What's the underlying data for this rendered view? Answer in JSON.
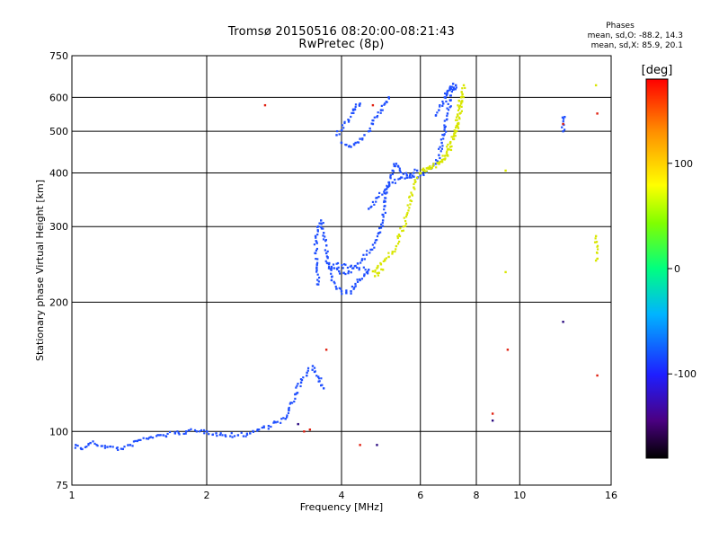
{
  "chart_data": {
    "type": "scatter",
    "title": "Tromsø 20150516 08:20:00-08:21:43",
    "subtitle": "RwPretec (8p)",
    "xlabel": "Frequency [MHz]",
    "ylabel": "Stationary phase Virtual Height [km]",
    "x_scale": "log",
    "y_scale": "log",
    "xlim": [
      1,
      16
    ],
    "ylim": [
      75,
      750
    ],
    "x_ticks": [
      1,
      2,
      4,
      6,
      8,
      10,
      16
    ],
    "y_ticks": [
      75,
      100,
      200,
      300,
      400,
      500,
      600,
      750
    ],
    "grid": true,
    "stats": {
      "heading": "Phases",
      "o_line": "mean, sd,O: -88.2, 14.3",
      "x_line": "mean, sd,X:  85.9, 20.1"
    },
    "colorbar": {
      "label": "[deg]",
      "range": [
        -180,
        180
      ],
      "ticks": [
        100,
        0,
        -100
      ],
      "tick_labels": [
        "100",
        "0",
        "-100"
      ]
    },
    "series": [
      {
        "mode": "O",
        "color": "#1f4fff",
        "trace": [
          [
            1.02,
            93
          ],
          [
            1.05,
            91
          ],
          [
            1.1,
            94
          ],
          [
            1.2,
            92
          ],
          [
            1.3,
            91
          ],
          [
            1.35,
            93
          ],
          [
            1.4,
            95
          ],
          [
            1.5,
            97
          ],
          [
            1.6,
            98
          ],
          [
            1.7,
            99
          ],
          [
            1.8,
            100
          ],
          [
            1.9,
            100
          ],
          [
            2.0,
            100
          ],
          [
            2.1,
            99
          ],
          [
            2.2,
            98
          ],
          [
            2.35,
            98
          ],
          [
            2.5,
            99
          ],
          [
            2.6,
            101
          ],
          [
            2.75,
            103
          ],
          [
            2.85,
            105
          ],
          [
            3.0,
            107
          ],
          [
            3.05,
            112
          ],
          [
            3.15,
            122
          ],
          [
            3.25,
            130
          ],
          [
            3.35,
            137
          ],
          [
            3.45,
            142
          ],
          [
            3.55,
            134
          ],
          [
            3.6,
            128
          ],
          [
            3.65,
            126
          ],
          [
            3.55,
            220
          ],
          [
            3.52,
            240
          ],
          [
            3.5,
            260
          ],
          [
            3.5,
            285
          ],
          [
            3.55,
            300
          ],
          [
            3.6,
            310
          ],
          [
            3.65,
            290
          ],
          [
            3.7,
            260
          ],
          [
            3.75,
            240
          ],
          [
            3.8,
            225
          ],
          [
            3.9,
            215
          ],
          [
            4.0,
            212
          ],
          [
            4.1,
            210
          ],
          [
            4.2,
            212
          ],
          [
            4.3,
            218
          ],
          [
            4.4,
            225
          ],
          [
            4.5,
            232
          ],
          [
            4.6,
            238
          ],
          [
            3.75,
            245
          ],
          [
            3.85,
            240
          ],
          [
            3.95,
            236
          ],
          [
            4.05,
            234
          ],
          [
            4.15,
            236
          ],
          [
            4.25,
            240
          ],
          [
            4.35,
            246
          ],
          [
            4.45,
            252
          ],
          [
            4.55,
            258
          ],
          [
            4.65,
            265
          ],
          [
            4.75,
            275
          ],
          [
            4.85,
            290
          ],
          [
            4.95,
            310
          ],
          [
            5.0,
            335
          ],
          [
            5.05,
            360
          ],
          [
            5.1,
            380
          ],
          [
            5.15,
            395
          ],
          [
            5.2,
            405
          ],
          [
            5.25,
            415
          ],
          [
            5.3,
            420
          ],
          [
            5.35,
            415
          ],
          [
            5.4,
            405
          ],
          [
            5.5,
            398
          ],
          [
            5.6,
            395
          ],
          [
            5.7,
            397
          ],
          [
            5.8,
            400
          ],
          [
            5.9,
            405
          ],
          [
            4.6,
            330
          ],
          [
            4.8,
            350
          ],
          [
            5.0,
            365
          ],
          [
            5.2,
            380
          ],
          [
            5.4,
            388
          ],
          [
            5.6,
            390
          ],
          [
            5.8,
            392
          ],
          [
            6.0,
            395
          ],
          [
            6.2,
            402
          ],
          [
            6.35,
            410
          ],
          [
            6.5,
            420
          ],
          [
            6.6,
            440
          ],
          [
            6.7,
            470
          ],
          [
            6.8,
            510
          ],
          [
            6.9,
            550
          ],
          [
            7.0,
            590
          ],
          [
            7.1,
            625
          ],
          [
            7.2,
            640
          ],
          [
            4.6,
            500
          ],
          [
            4.7,
            520
          ],
          [
            4.8,
            540
          ],
          [
            4.9,
            560
          ],
          [
            5.0,
            580
          ],
          [
            5.1,
            600
          ],
          [
            4.5,
            490
          ],
          [
            4.4,
            480
          ],
          [
            4.3,
            470
          ],
          [
            4.2,
            460
          ],
          [
            4.1,
            465
          ],
          [
            4.0,
            470
          ],
          [
            6.8,
            600
          ],
          [
            6.9,
            620
          ],
          [
            7.0,
            635
          ],
          [
            7.1,
            645
          ],
          [
            6.75,
            580
          ],
          [
            6.6,
            560
          ],
          [
            6.5,
            545
          ],
          [
            12.5,
            500
          ],
          [
            12.5,
            520
          ],
          [
            12.6,
            540
          ],
          [
            4.25,
            560
          ],
          [
            4.4,
            580
          ],
          [
            3.9,
            490
          ]
        ]
      },
      {
        "mode": "X",
        "color": "#d8e600",
        "trace": [
          [
            4.7,
            236
          ],
          [
            4.8,
            240
          ],
          [
            4.9,
            245
          ],
          [
            5.0,
            250
          ],
          [
            5.1,
            255
          ],
          [
            5.2,
            262
          ],
          [
            5.3,
            270
          ],
          [
            5.4,
            285
          ],
          [
            5.5,
            300
          ],
          [
            5.6,
            320
          ],
          [
            5.7,
            345
          ],
          [
            5.8,
            370
          ],
          [
            5.9,
            390
          ],
          [
            6.0,
            400
          ],
          [
            6.2,
            410
          ],
          [
            6.4,
            415
          ],
          [
            6.6,
            420
          ],
          [
            6.8,
            430
          ],
          [
            6.9,
            440
          ],
          [
            7.0,
            460
          ],
          [
            7.1,
            480
          ],
          [
            7.2,
            500
          ],
          [
            7.3,
            520
          ],
          [
            7.35,
            550
          ],
          [
            7.4,
            580
          ],
          [
            7.45,
            610
          ],
          [
            7.5,
            640
          ],
          [
            4.75,
            230
          ],
          [
            4.85,
            234
          ],
          [
            4.95,
            238
          ],
          [
            6.1,
            405
          ],
          [
            6.3,
            412
          ],
          [
            6.7,
            425
          ],
          [
            7.0,
            470
          ],
          [
            7.2,
            510
          ],
          [
            7.4,
            600
          ],
          [
            9.3,
            405
          ],
          [
            9.3,
            235
          ],
          [
            14.8,
            250
          ],
          [
            14.8,
            285
          ],
          [
            14.8,
            640
          ]
        ]
      },
      {
        "mode": "outliers",
        "color": "#e02010",
        "trace": [
          [
            2.7,
            575
          ],
          [
            4.7,
            575
          ],
          [
            3.3,
            100
          ],
          [
            3.4,
            101
          ],
          [
            4.4,
            93
          ],
          [
            8.7,
            110
          ],
          [
            9.4,
            155
          ],
          [
            12.5,
            520
          ],
          [
            14.9,
            550
          ],
          [
            14.9,
            135
          ],
          [
            3.7,
            155
          ]
        ]
      },
      {
        "mode": "outliers",
        "color": "#2a0a80",
        "trace": [
          [
            8.7,
            106
          ],
          [
            12.5,
            180
          ],
          [
            3.2,
            104
          ],
          [
            4.8,
            93
          ]
        ]
      }
    ]
  }
}
